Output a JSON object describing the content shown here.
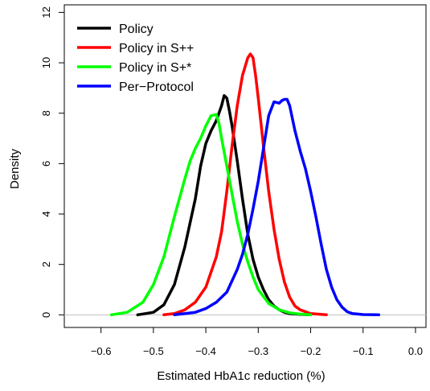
{
  "chart_data": {
    "type": "line",
    "xlabel": "Estimated HbA1c reduction (%)",
    "ylabel": "Density",
    "xlim": [
      -0.67,
      0.02
    ],
    "ylim": [
      -0.5,
      12.3
    ],
    "xticks": [
      -0.6,
      -0.5,
      -0.4,
      -0.3,
      -0.2,
      -0.1,
      0.0
    ],
    "xtick_labels": [
      "−0.6",
      "−0.5",
      "−0.4",
      "−0.3",
      "−0.2",
      "−0.1",
      "0.0"
    ],
    "yticks": [
      0,
      2,
      4,
      6,
      8,
      10,
      12
    ],
    "ytick_labels": [
      "0",
      "2",
      "4",
      "6",
      "8",
      "10",
      "12"
    ],
    "grid": false,
    "reference_line_y": 0,
    "legend_position": "top-left",
    "series": [
      {
        "name": "Policy",
        "color": "#000000",
        "x": [
          -0.53,
          -0.5,
          -0.48,
          -0.46,
          -0.44,
          -0.42,
          -0.41,
          -0.4,
          -0.39,
          -0.38,
          -0.37,
          -0.365,
          -0.36,
          -0.355,
          -0.35,
          -0.34,
          -0.33,
          -0.32,
          -0.31,
          -0.3,
          -0.29,
          -0.28,
          -0.27,
          -0.26,
          -0.25,
          -0.24,
          -0.22,
          -0.2
        ],
        "y": [
          0.0,
          0.1,
          0.4,
          1.2,
          2.7,
          4.6,
          5.9,
          6.8,
          7.3,
          7.7,
          8.3,
          8.7,
          8.6,
          8.1,
          7.5,
          6.1,
          4.6,
          3.2,
          2.2,
          1.5,
          1.0,
          0.6,
          0.35,
          0.2,
          0.1,
          0.05,
          0.02,
          0.0
        ]
      },
      {
        "name": "Policy in S++",
        "color": "#ff0000",
        "x": [
          -0.48,
          -0.46,
          -0.44,
          -0.42,
          -0.4,
          -0.38,
          -0.37,
          -0.36,
          -0.35,
          -0.34,
          -0.33,
          -0.32,
          -0.315,
          -0.31,
          -0.305,
          -0.3,
          -0.29,
          -0.28,
          -0.27,
          -0.26,
          -0.25,
          -0.24,
          -0.23,
          -0.22,
          -0.2,
          -0.17
        ],
        "y": [
          0.0,
          0.05,
          0.2,
          0.5,
          1.1,
          2.3,
          3.3,
          4.9,
          6.7,
          8.3,
          9.5,
          10.2,
          10.35,
          10.2,
          9.5,
          8.6,
          6.7,
          4.9,
          3.4,
          2.2,
          1.3,
          0.7,
          0.35,
          0.2,
          0.05,
          0.0
        ]
      },
      {
        "name": "Policy in S+*",
        "color": "#00ff00",
        "x": [
          -0.58,
          -0.55,
          -0.52,
          -0.5,
          -0.48,
          -0.46,
          -0.44,
          -0.43,
          -0.42,
          -0.41,
          -0.4,
          -0.39,
          -0.38,
          -0.375,
          -0.37,
          -0.36,
          -0.35,
          -0.34,
          -0.33,
          -0.32,
          -0.31,
          -0.3,
          -0.28,
          -0.26,
          -0.24,
          -0.22,
          -0.2
        ],
        "y": [
          0.0,
          0.1,
          0.5,
          1.2,
          2.3,
          3.9,
          5.4,
          6.1,
          6.6,
          7.0,
          7.5,
          7.9,
          7.95,
          7.6,
          7.0,
          5.9,
          4.8,
          3.7,
          2.8,
          2.1,
          1.5,
          1.0,
          0.45,
          0.2,
          0.08,
          0.03,
          0.0
        ]
      },
      {
        "name": "Per−Protocol",
        "color": "#0000ff",
        "x": [
          -0.46,
          -0.42,
          -0.4,
          -0.38,
          -0.36,
          -0.34,
          -0.33,
          -0.32,
          -0.31,
          -0.3,
          -0.29,
          -0.28,
          -0.27,
          -0.26,
          -0.255,
          -0.25,
          -0.245,
          -0.24,
          -0.23,
          -0.22,
          -0.21,
          -0.2,
          -0.19,
          -0.18,
          -0.17,
          -0.16,
          -0.15,
          -0.14,
          -0.13,
          -0.12,
          -0.1,
          -0.07
        ],
        "y": [
          0.0,
          0.1,
          0.25,
          0.5,
          0.9,
          1.8,
          2.4,
          3.2,
          4.2,
          5.3,
          6.6,
          7.9,
          8.45,
          8.4,
          8.5,
          8.55,
          8.55,
          8.3,
          7.3,
          6.5,
          5.8,
          4.9,
          3.9,
          2.8,
          1.8,
          1.1,
          0.6,
          0.3,
          0.12,
          0.05,
          0.01,
          0.0
        ]
      }
    ]
  }
}
